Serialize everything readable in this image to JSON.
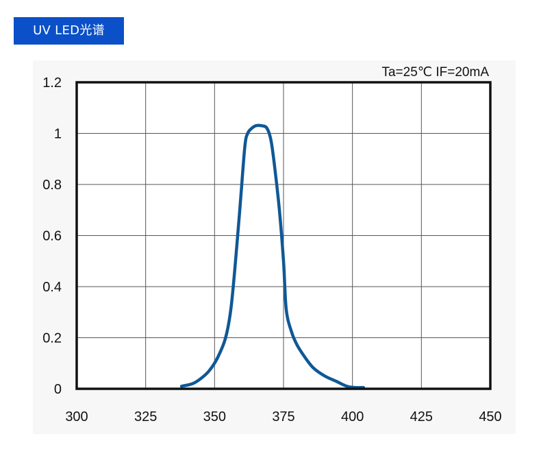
{
  "header": {
    "title": "UV LED光谱"
  },
  "chart_data": {
    "type": "line",
    "title": "",
    "annotation": "Ta=25℃  IF=20mA",
    "xlabel": "",
    "ylabel": "",
    "xlim": [
      300,
      450
    ],
    "ylim": [
      0,
      1.2
    ],
    "x_ticks": [
      300,
      325,
      350,
      375,
      400,
      425,
      450
    ],
    "x_tick_labels": [
      "300",
      "325",
      "350",
      "375",
      "400",
      "425",
      "450"
    ],
    "y_ticks": [
      0,
      0.2,
      0.4,
      0.6,
      0.8,
      1,
      1.2
    ],
    "y_tick_labels": [
      "0",
      "0.2",
      "0.4",
      "0.6",
      "0.8",
      "1",
      "1.2"
    ],
    "grid": true,
    "series": [
      {
        "color": "#0f5896",
        "x": [
          338,
          342,
          345,
          348,
          351,
          354,
          356,
          358,
          359.5,
          361,
          362,
          363.5,
          365,
          367,
          369,
          370.5,
          372,
          373.5,
          375,
          376,
          378,
          380,
          383,
          386,
          390,
          394,
          398,
          401,
          404
        ],
        "y": [
          0.01,
          0.02,
          0.04,
          0.07,
          0.12,
          0.2,
          0.32,
          0.55,
          0.75,
          0.95,
          1.0,
          1.02,
          1.03,
          1.03,
          1.02,
          0.97,
          0.85,
          0.7,
          0.5,
          0.31,
          0.22,
          0.17,
          0.12,
          0.08,
          0.05,
          0.03,
          0.01,
          0.005,
          0.005
        ]
      }
    ]
  }
}
